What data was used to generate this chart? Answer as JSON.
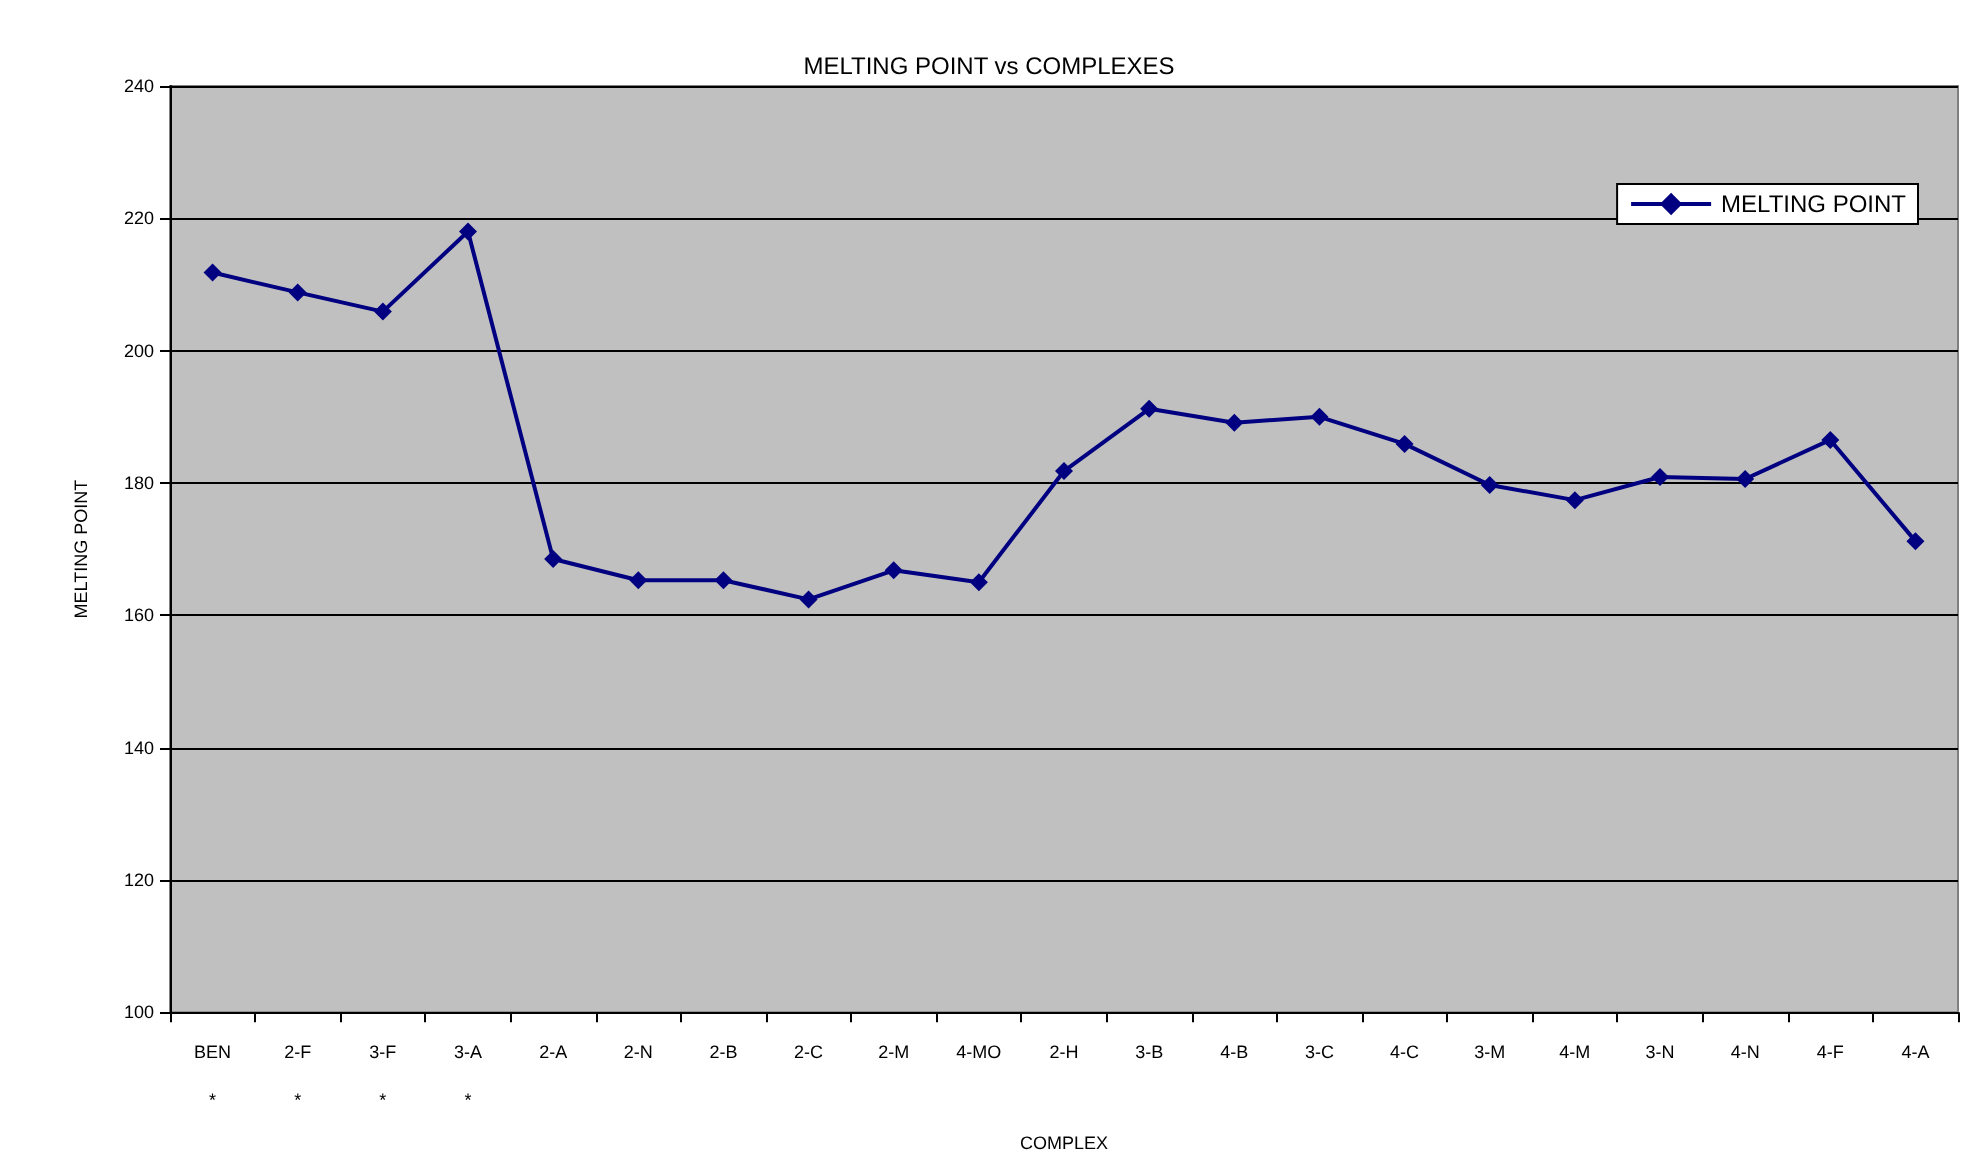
{
  "chart_data": {
    "type": "line",
    "title": "MELTING POINT vs COMPLEXES",
    "xlabel": "COMPLEX",
    "ylabel": "MELTING POINT",
    "categories": [
      "BEN\n*",
      "2-F\n*",
      "3-F\n*",
      "3-A\n*",
      "2-A",
      "2-N",
      "2-B",
      "2-C",
      "2-M",
      "4-MO",
      "2-H",
      "3-B",
      "4-B",
      "3-C",
      "4-C",
      "3-M",
      "4-M",
      "3-N",
      "4-N",
      "4-F",
      "4-A"
    ],
    "series": [
      {
        "name": "MELTING POINT",
        "color": "#000080",
        "values": [
          211.8,
          208.8,
          205.9,
          218,
          168.5,
          165.3,
          165.3,
          162.4,
          166.8,
          165,
          181.8,
          191.2,
          189.1,
          190,
          185.9,
          179.7,
          177.4,
          180.9,
          180.6,
          186.5,
          171.2
        ]
      }
    ],
    "ylim": [
      100,
      240
    ],
    "yticks": [
      100,
      120,
      140,
      160,
      180,
      200,
      220,
      240
    ],
    "grid": "y",
    "legend": "top right",
    "marker": "diamond",
    "line_style": "solid"
  }
}
